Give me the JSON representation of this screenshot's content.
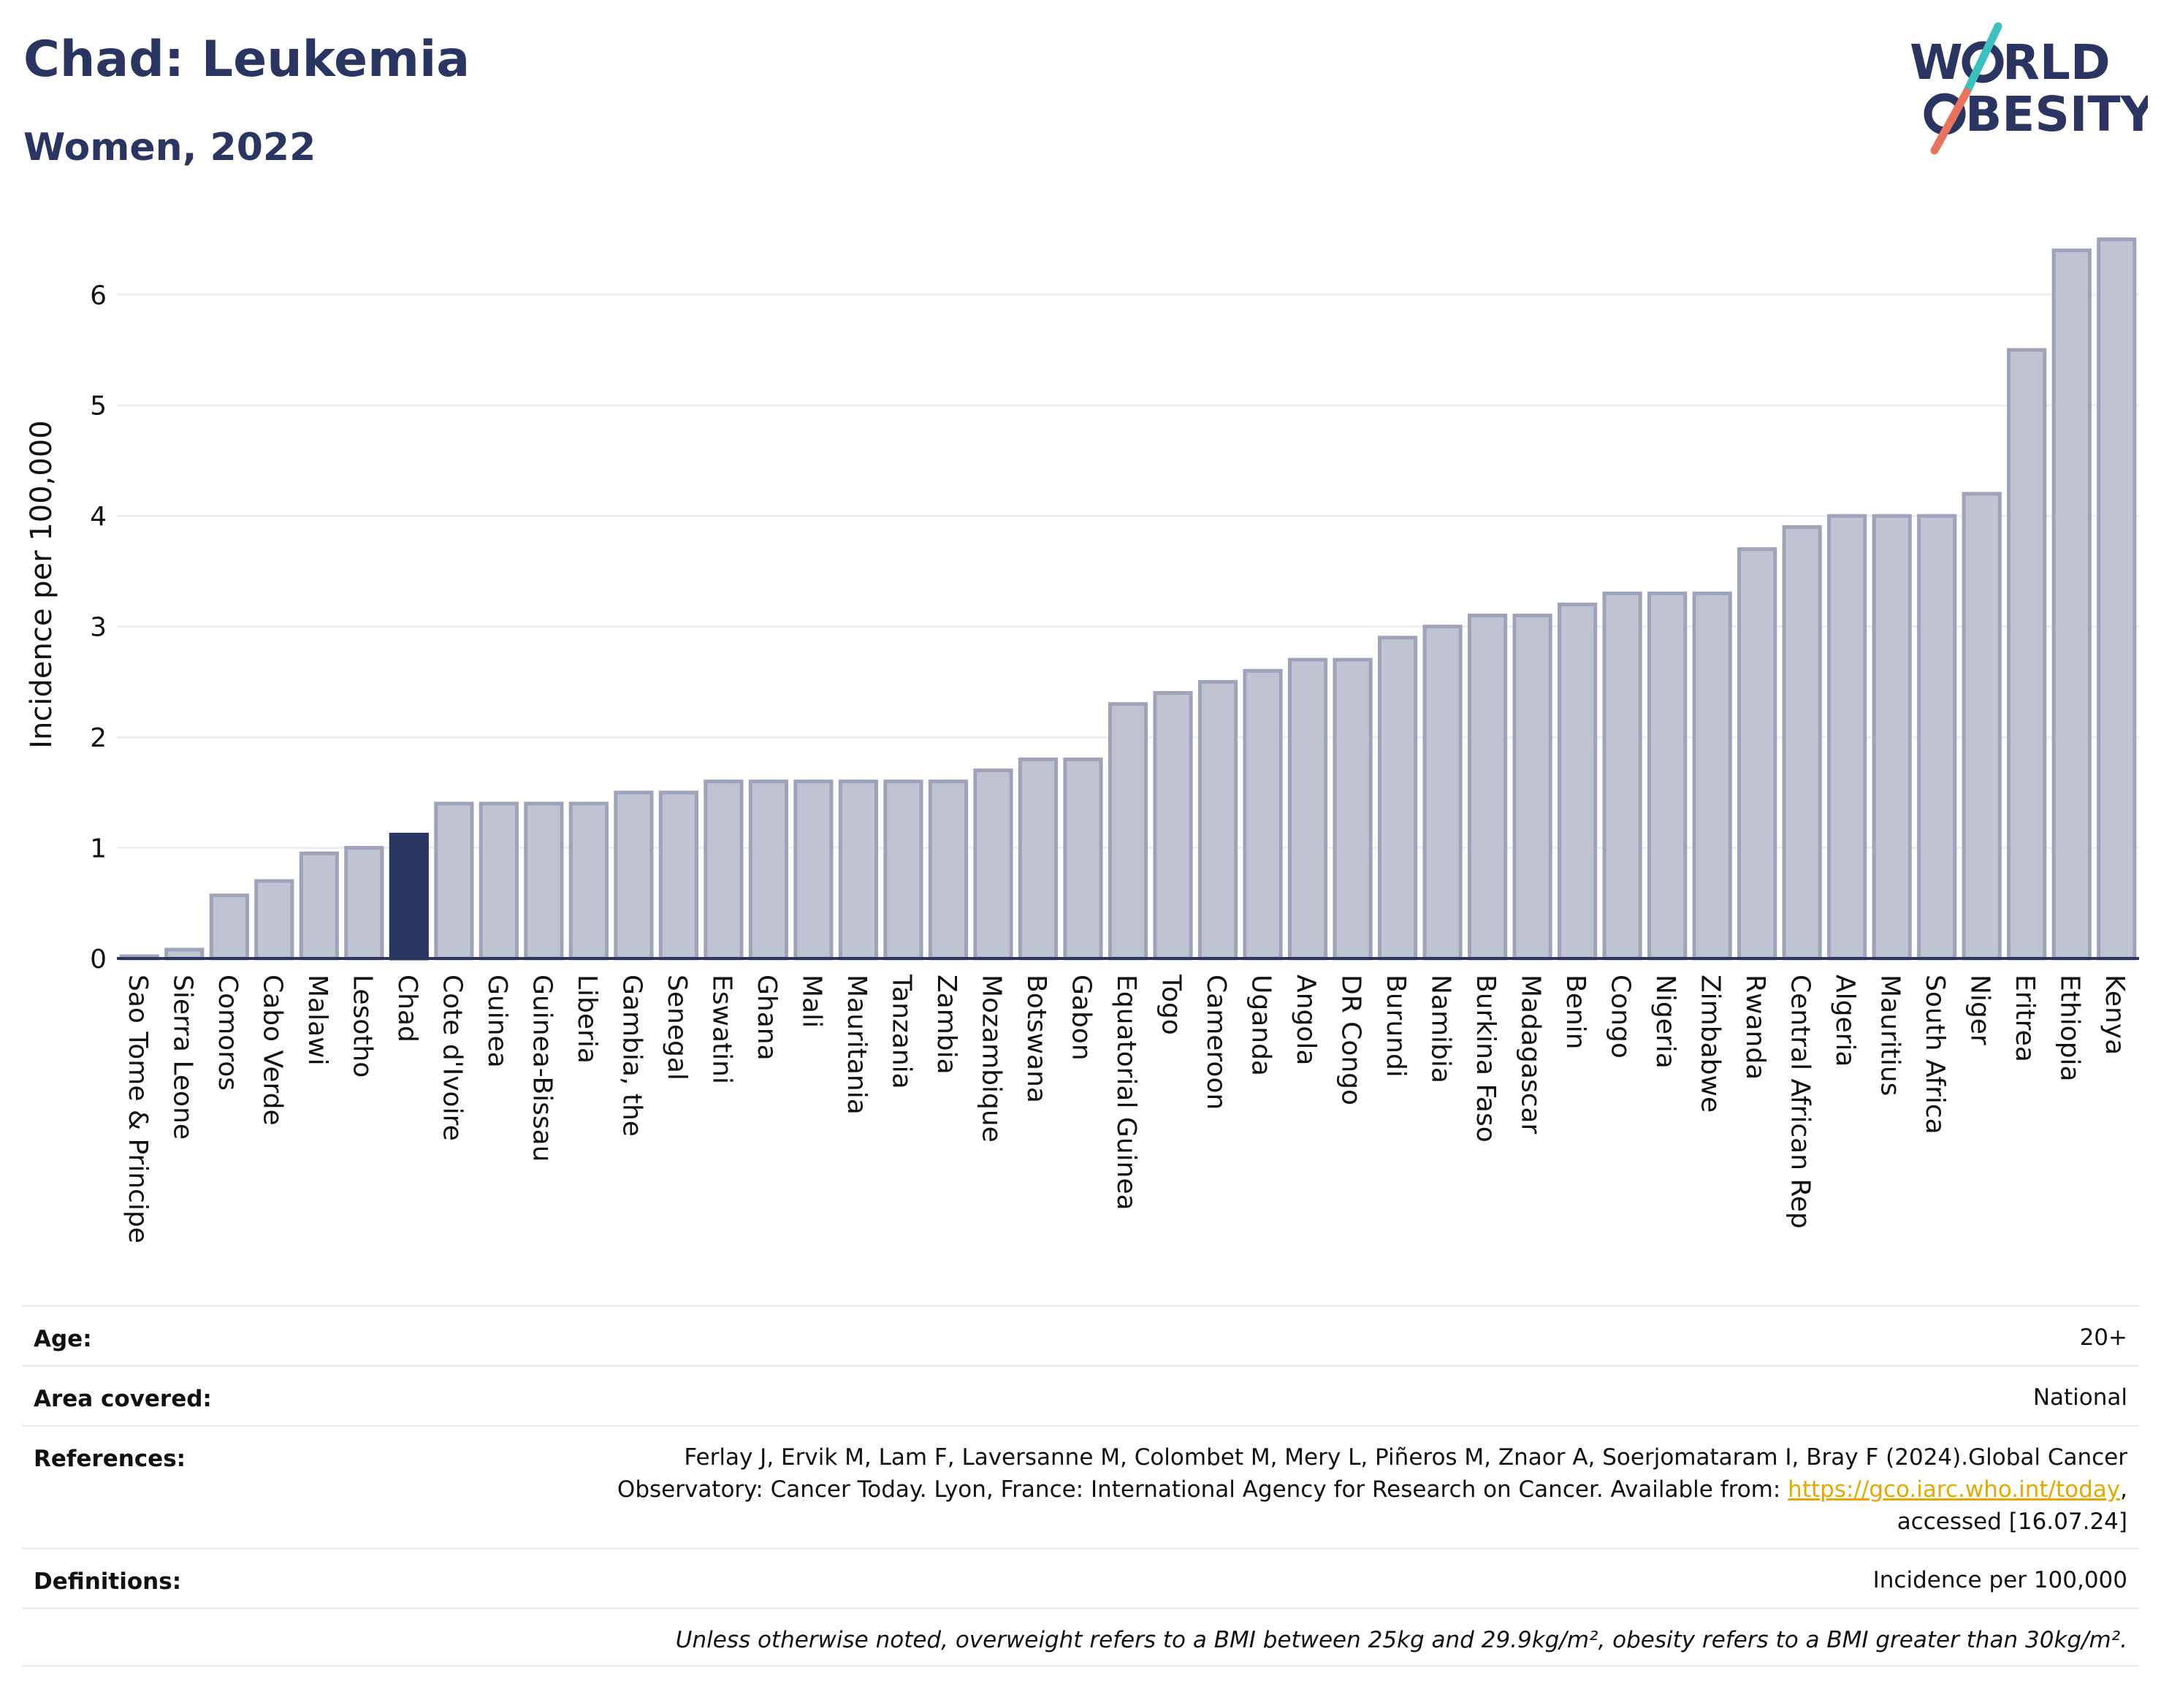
{
  "header": {
    "title": "Chad: Leukemia",
    "subtitle": "Women, 2022"
  },
  "logo": {
    "line1_a": "W",
    "line1_b": "RLD",
    "line2_b": "BESITY",
    "colors": {
      "text": "#2b3561",
      "teal": "#3cc0c0",
      "coral": "#e8735f"
    }
  },
  "colors": {
    "bar": "#c0c3d1",
    "bar_stroke": "#9ea3ba",
    "highlight": "#2b3561",
    "grid": "#eceef3",
    "axis": "#2b3561"
  },
  "chart_data": {
    "type": "bar",
    "highlight": "Chad",
    "ylabel": "Incidence per 100,000",
    "ylim": [
      0,
      6.55
    ],
    "yticks": [
      0,
      1,
      2,
      3,
      4,
      5,
      6
    ],
    "grid": true,
    "categories": [
      "Sao Tome & Principe",
      "Sierra Leone",
      "Comoros",
      "Cabo Verde",
      "Malawi",
      "Lesotho",
      "Chad",
      "Cote d'Ivoire",
      "Guinea",
      "Guinea-Bissau",
      "Liberia",
      "Gambia, the",
      "Senegal",
      "Eswatini",
      "Ghana",
      "Mali",
      "Mauritania",
      "Tanzania",
      "Zambia",
      "Mozambique",
      "Botswana",
      "Gabon",
      "Equatorial Guinea",
      "Togo",
      "Cameroon",
      "Uganda",
      "Angola",
      "DR Congo",
      "Burundi",
      "Namibia",
      "Burkina Faso",
      "Madagascar",
      "Benin",
      "Congo",
      "Nigeria",
      "Zimbabwe",
      "Rwanda",
      "Central African Rep",
      "Algeria",
      "Mauritius",
      "South Africa",
      "Niger",
      "Eritrea",
      "Ethiopia",
      "Kenya"
    ],
    "values": [
      0.02,
      0.08,
      0.57,
      0.7,
      0.95,
      1.0,
      1.12,
      1.4,
      1.4,
      1.4,
      1.4,
      1.5,
      1.5,
      1.6,
      1.6,
      1.6,
      1.6,
      1.6,
      1.6,
      1.7,
      1.8,
      1.8,
      2.3,
      2.4,
      2.5,
      2.6,
      2.7,
      2.7,
      2.9,
      3.0,
      3.1,
      3.1,
      3.2,
      3.3,
      3.3,
      3.3,
      3.7,
      3.9,
      4.0,
      4.0,
      4.0,
      4.2,
      5.5,
      6.4,
      6.5
    ]
  },
  "meta": {
    "age_label": "Age:",
    "age_value": "20+",
    "area_label": "Area covered:",
    "area_value": "National",
    "references_label": "References:",
    "references_text": "Ferlay J, Ervik M, Lam F, Laversanne M, Colombet M, Mery L, Piñeros M, Znaor A, Soerjomataram I, Bray F (2024).Global Cancer Observatory: Cancer Today. Lyon, France: International Agency for Research on Cancer. Available from:",
    "references_link": "https://gco.iarc.who.int/today",
    "references_suffix": ", accessed [16.07.24]",
    "definitions_label": "Definitions:",
    "definitions_value": "Incidence per 100,000",
    "note": "Unless otherwise noted, overweight refers to a BMI between 25kg and 29.9kg/m², obesity refers to a BMI greater than 30kg/m²."
  }
}
